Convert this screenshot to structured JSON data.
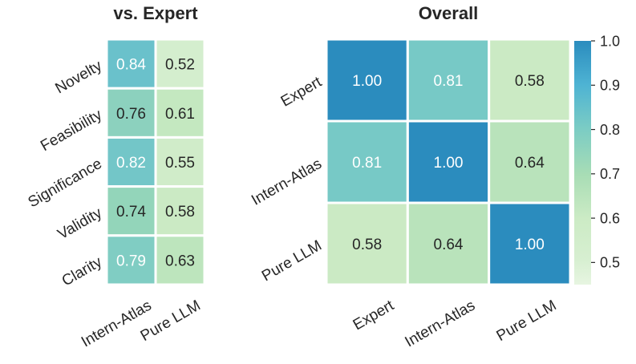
{
  "colors": {
    "low": "#e7f5e1",
    "mid_low": "#ccebc5",
    "mid": "#a8ddb5",
    "mid_high": "#7bccc4",
    "high": "#4eb3d3",
    "top": "#2b8cbe",
    "text_dark": "#262626",
    "text_light": "#ffffff"
  },
  "chart_data": [
    {
      "type": "heatmap",
      "title": "vs. Expert",
      "rows": [
        "Novelty",
        "Feasibility",
        "Significance",
        "Validity",
        "Clarity"
      ],
      "columns": [
        "Intern-Atlas",
        "Pure LLM"
      ],
      "values": [
        [
          0.84,
          0.52
        ],
        [
          0.76,
          0.61
        ],
        [
          0.82,
          0.55
        ],
        [
          0.74,
          0.58
        ],
        [
          0.79,
          0.63
        ]
      ],
      "value_format": "0.00",
      "vmin": 0.45,
      "vmax": 1.0
    },
    {
      "type": "heatmap",
      "title": "Overall",
      "rows": [
        "Expert",
        "Intern-Atlas",
        "Pure LLM"
      ],
      "columns": [
        "Expert",
        "Intern-Atlas",
        "Pure LLM"
      ],
      "values": [
        [
          1.0,
          0.81,
          0.58
        ],
        [
          0.81,
          1.0,
          0.64
        ],
        [
          0.58,
          0.64,
          1.0
        ]
      ],
      "value_format": "0.00",
      "vmin": 0.45,
      "vmax": 1.0,
      "colorbar": {
        "ticks": [
          "0.5",
          "0.6",
          "0.7",
          "0.8",
          "0.9",
          "1.0"
        ],
        "tick_values": [
          0.5,
          0.6,
          0.7,
          0.8,
          0.9,
          1.0
        ],
        "placement": "right"
      }
    }
  ]
}
